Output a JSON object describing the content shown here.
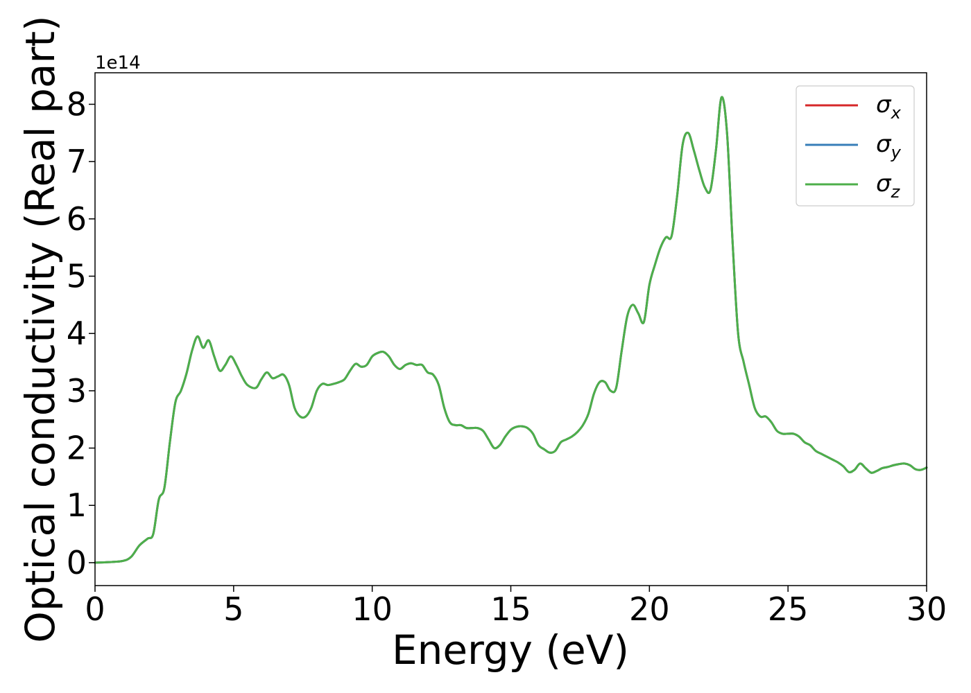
{
  "chart_data": {
    "type": "line",
    "title": "",
    "xlabel": "Energy (eV)",
    "ylabel": "Optical conductivity (Real part)",
    "y_offset_label": "1e14",
    "y_scale": 100000000000000.0,
    "xlim": [
      0,
      30
    ],
    "ylim": [
      -0.4,
      8.55
    ],
    "x_ticks": [
      0,
      5,
      10,
      15,
      20,
      25,
      30
    ],
    "y_ticks": [
      0,
      1,
      2,
      3,
      4,
      5,
      6,
      7,
      8
    ],
    "grid": false,
    "legend": {
      "placement": "top-right",
      "entries": [
        {
          "symbol": "σ",
          "sub": "x",
          "color": "#d62728"
        },
        {
          "symbol": "σ",
          "sub": "y",
          "color": "#377eb8"
        },
        {
          "symbol": "σ",
          "sub": "z",
          "color": "#4daf4a"
        }
      ]
    },
    "series": [
      {
        "id": "sigma_x",
        "color": "#d62728",
        "x": [
          0,
          0.5,
          1.0,
          1.3,
          1.6,
          1.9,
          2.1,
          2.3,
          2.5,
          2.7,
          2.9,
          3.1,
          3.3,
          3.5,
          3.7,
          3.9,
          4.1,
          4.3,
          4.5,
          4.7,
          4.9,
          5.1,
          5.3,
          5.5,
          5.8,
          6.0,
          6.2,
          6.4,
          6.6,
          6.8,
          7.0,
          7.2,
          7.4,
          7.6,
          7.8,
          8.0,
          8.2,
          8.4,
          8.6,
          8.8,
          9.0,
          9.2,
          9.4,
          9.6,
          9.8,
          10.0,
          10.2,
          10.4,
          10.6,
          10.8,
          11.0,
          11.2,
          11.4,
          11.6,
          11.8,
          12.0,
          12.2,
          12.4,
          12.6,
          12.8,
          13.0,
          13.2,
          13.4,
          13.6,
          13.8,
          14.0,
          14.2,
          14.4,
          14.6,
          14.8,
          15.0,
          15.2,
          15.4,
          15.6,
          15.8,
          16.0,
          16.2,
          16.4,
          16.6,
          16.8,
          17.0,
          17.2,
          17.4,
          17.6,
          17.8,
          18.0,
          18.2,
          18.4,
          18.6,
          18.8,
          19.0,
          19.2,
          19.4,
          19.6,
          19.8,
          20.0,
          20.2,
          20.4,
          20.6,
          20.8,
          21.0,
          21.2,
          21.4,
          21.6,
          21.8,
          22.0,
          22.2,
          22.4,
          22.6,
          22.8,
          23.0,
          23.2,
          23.4,
          23.6,
          23.8,
          24.0,
          24.2,
          24.4,
          24.6,
          24.8,
          25.0,
          25.2,
          25.4,
          25.6,
          25.8,
          26.0,
          26.2,
          26.4,
          26.6,
          26.8,
          27.0,
          27.2,
          27.4,
          27.6,
          27.8,
          28.0,
          28.2,
          28.4,
          28.6,
          28.8,
          29.0,
          29.2,
          29.4,
          29.6,
          29.8,
          30.0
        ],
        "y": [
          0.0,
          0.01,
          0.03,
          0.1,
          0.3,
          0.42,
          0.5,
          1.1,
          1.3,
          2.1,
          2.8,
          3.0,
          3.3,
          3.7,
          3.95,
          3.75,
          3.88,
          3.6,
          3.35,
          3.45,
          3.6,
          3.45,
          3.25,
          3.1,
          3.05,
          3.2,
          3.32,
          3.22,
          3.25,
          3.28,
          3.1,
          2.7,
          2.55,
          2.55,
          2.7,
          3.0,
          3.12,
          3.1,
          3.12,
          3.15,
          3.2,
          3.35,
          3.47,
          3.42,
          3.45,
          3.6,
          3.66,
          3.68,
          3.6,
          3.45,
          3.38,
          3.45,
          3.48,
          3.45,
          3.45,
          3.32,
          3.28,
          3.1,
          2.7,
          2.45,
          2.4,
          2.4,
          2.35,
          2.35,
          2.35,
          2.3,
          2.15,
          2.0,
          2.05,
          2.2,
          2.32,
          2.37,
          2.38,
          2.35,
          2.25,
          2.05,
          1.98,
          1.92,
          1.95,
          2.1,
          2.15,
          2.2,
          2.28,
          2.4,
          2.6,
          2.95,
          3.15,
          3.15,
          3.0,
          3.05,
          3.7,
          4.3,
          4.5,
          4.35,
          4.2,
          4.85,
          5.2,
          5.5,
          5.68,
          5.7,
          6.4,
          7.3,
          7.5,
          7.2,
          6.85,
          6.55,
          6.5,
          7.2,
          8.12,
          7.5,
          5.6,
          4.0,
          3.5,
          3.1,
          2.7,
          2.55,
          2.55,
          2.45,
          2.3,
          2.25,
          2.25,
          2.25,
          2.2,
          2.1,
          2.05,
          1.95,
          1.9,
          1.85,
          1.8,
          1.75,
          1.68,
          1.58,
          1.62,
          1.73,
          1.65,
          1.57,
          1.6,
          1.65,
          1.67,
          1.7,
          1.72,
          1.73,
          1.7,
          1.63,
          1.62,
          1.66
        ]
      },
      {
        "id": "sigma_y",
        "color": "#377eb8",
        "x": [
          0,
          0.5,
          1.0,
          1.3,
          1.6,
          1.9,
          2.1,
          2.3,
          2.5,
          2.7,
          2.9,
          3.1,
          3.3,
          3.5,
          3.7,
          3.9,
          4.1,
          4.3,
          4.5,
          4.7,
          4.9,
          5.1,
          5.3,
          5.5,
          5.8,
          6.0,
          6.2,
          6.4,
          6.6,
          6.8,
          7.0,
          7.2,
          7.4,
          7.6,
          7.8,
          8.0,
          8.2,
          8.4,
          8.6,
          8.8,
          9.0,
          9.2,
          9.4,
          9.6,
          9.8,
          10.0,
          10.2,
          10.4,
          10.6,
          10.8,
          11.0,
          11.2,
          11.4,
          11.6,
          11.8,
          12.0,
          12.2,
          12.4,
          12.6,
          12.8,
          13.0,
          13.2,
          13.4,
          13.6,
          13.8,
          14.0,
          14.2,
          14.4,
          14.6,
          14.8,
          15.0,
          15.2,
          15.4,
          15.6,
          15.8,
          16.0,
          16.2,
          16.4,
          16.6,
          16.8,
          17.0,
          17.2,
          17.4,
          17.6,
          17.8,
          18.0,
          18.2,
          18.4,
          18.6,
          18.8,
          19.0,
          19.2,
          19.4,
          19.6,
          19.8,
          20.0,
          20.2,
          20.4,
          20.6,
          20.8,
          21.0,
          21.2,
          21.4,
          21.6,
          21.8,
          22.0,
          22.2,
          22.4,
          22.6,
          22.8,
          23.0,
          23.2,
          23.4,
          23.6,
          23.8,
          24.0,
          24.2,
          24.4,
          24.6,
          24.8,
          25.0,
          25.2,
          25.4,
          25.6,
          25.8,
          26.0,
          26.2,
          26.4,
          26.6,
          26.8,
          27.0,
          27.2,
          27.4,
          27.6,
          27.8,
          28.0,
          28.2,
          28.4,
          28.6,
          28.8,
          29.0,
          29.2,
          29.4,
          29.6,
          29.8,
          30.0
        ],
        "y": [
          0.0,
          0.01,
          0.03,
          0.1,
          0.3,
          0.42,
          0.5,
          1.1,
          1.3,
          2.1,
          2.8,
          3.0,
          3.3,
          3.7,
          3.95,
          3.75,
          3.88,
          3.6,
          3.35,
          3.45,
          3.6,
          3.45,
          3.25,
          3.1,
          3.05,
          3.2,
          3.32,
          3.22,
          3.25,
          3.28,
          3.1,
          2.7,
          2.55,
          2.55,
          2.7,
          3.0,
          3.12,
          3.1,
          3.12,
          3.15,
          3.2,
          3.35,
          3.47,
          3.42,
          3.45,
          3.6,
          3.66,
          3.68,
          3.6,
          3.45,
          3.38,
          3.45,
          3.48,
          3.45,
          3.45,
          3.32,
          3.28,
          3.1,
          2.7,
          2.45,
          2.4,
          2.4,
          2.35,
          2.35,
          2.35,
          2.3,
          2.15,
          2.0,
          2.05,
          2.2,
          2.32,
          2.37,
          2.38,
          2.35,
          2.25,
          2.05,
          1.98,
          1.92,
          1.95,
          2.1,
          2.15,
          2.2,
          2.28,
          2.4,
          2.6,
          2.95,
          3.15,
          3.15,
          3.0,
          3.05,
          3.7,
          4.3,
          4.5,
          4.35,
          4.2,
          4.85,
          5.2,
          5.5,
          5.68,
          5.7,
          6.4,
          7.3,
          7.5,
          7.2,
          6.85,
          6.55,
          6.5,
          7.2,
          8.12,
          7.5,
          5.6,
          4.0,
          3.5,
          3.1,
          2.7,
          2.55,
          2.55,
          2.45,
          2.3,
          2.25,
          2.25,
          2.25,
          2.2,
          2.1,
          2.05,
          1.95,
          1.9,
          1.85,
          1.8,
          1.75,
          1.68,
          1.58,
          1.62,
          1.73,
          1.65,
          1.57,
          1.6,
          1.65,
          1.67,
          1.7,
          1.72,
          1.73,
          1.7,
          1.63,
          1.62,
          1.66
        ]
      },
      {
        "id": "sigma_z",
        "color": "#4daf4a",
        "x": [
          0,
          0.5,
          1.0,
          1.3,
          1.6,
          1.9,
          2.1,
          2.3,
          2.5,
          2.7,
          2.9,
          3.1,
          3.3,
          3.5,
          3.7,
          3.9,
          4.1,
          4.3,
          4.5,
          4.7,
          4.9,
          5.1,
          5.3,
          5.5,
          5.8,
          6.0,
          6.2,
          6.4,
          6.6,
          6.8,
          7.0,
          7.2,
          7.4,
          7.6,
          7.8,
          8.0,
          8.2,
          8.4,
          8.6,
          8.8,
          9.0,
          9.2,
          9.4,
          9.6,
          9.8,
          10.0,
          10.2,
          10.4,
          10.6,
          10.8,
          11.0,
          11.2,
          11.4,
          11.6,
          11.8,
          12.0,
          12.2,
          12.4,
          12.6,
          12.8,
          13.0,
          13.2,
          13.4,
          13.6,
          13.8,
          14.0,
          14.2,
          14.4,
          14.6,
          14.8,
          15.0,
          15.2,
          15.4,
          15.6,
          15.8,
          16.0,
          16.2,
          16.4,
          16.6,
          16.8,
          17.0,
          17.2,
          17.4,
          17.6,
          17.8,
          18.0,
          18.2,
          18.4,
          18.6,
          18.8,
          19.0,
          19.2,
          19.4,
          19.6,
          19.8,
          20.0,
          20.2,
          20.4,
          20.6,
          20.8,
          21.0,
          21.2,
          21.4,
          21.6,
          21.8,
          22.0,
          22.2,
          22.4,
          22.6,
          22.8,
          23.0,
          23.2,
          23.4,
          23.6,
          23.8,
          24.0,
          24.2,
          24.4,
          24.6,
          24.8,
          25.0,
          25.2,
          25.4,
          25.6,
          25.8,
          26.0,
          26.2,
          26.4,
          26.6,
          26.8,
          27.0,
          27.2,
          27.4,
          27.6,
          27.8,
          28.0,
          28.2,
          28.4,
          28.6,
          28.8,
          29.0,
          29.2,
          29.4,
          29.6,
          29.8,
          30.0
        ],
        "y": [
          0.0,
          0.01,
          0.03,
          0.1,
          0.3,
          0.42,
          0.5,
          1.1,
          1.3,
          2.1,
          2.8,
          3.0,
          3.3,
          3.7,
          3.95,
          3.75,
          3.88,
          3.6,
          3.35,
          3.45,
          3.6,
          3.45,
          3.25,
          3.1,
          3.05,
          3.2,
          3.32,
          3.22,
          3.25,
          3.28,
          3.1,
          2.7,
          2.55,
          2.55,
          2.7,
          3.0,
          3.12,
          3.1,
          3.12,
          3.15,
          3.2,
          3.35,
          3.47,
          3.42,
          3.45,
          3.6,
          3.66,
          3.68,
          3.6,
          3.45,
          3.38,
          3.45,
          3.48,
          3.45,
          3.45,
          3.32,
          3.28,
          3.1,
          2.7,
          2.45,
          2.4,
          2.4,
          2.35,
          2.35,
          2.35,
          2.3,
          2.15,
          2.0,
          2.05,
          2.2,
          2.32,
          2.37,
          2.38,
          2.35,
          2.25,
          2.05,
          1.98,
          1.92,
          1.95,
          2.1,
          2.15,
          2.2,
          2.28,
          2.4,
          2.6,
          2.95,
          3.15,
          3.15,
          3.0,
          3.05,
          3.7,
          4.3,
          4.5,
          4.35,
          4.2,
          4.85,
          5.2,
          5.5,
          5.68,
          5.7,
          6.4,
          7.3,
          7.5,
          7.2,
          6.85,
          6.55,
          6.5,
          7.2,
          8.12,
          7.5,
          5.6,
          4.0,
          3.5,
          3.1,
          2.7,
          2.55,
          2.55,
          2.45,
          2.3,
          2.25,
          2.25,
          2.25,
          2.2,
          2.1,
          2.05,
          1.95,
          1.9,
          1.85,
          1.8,
          1.75,
          1.68,
          1.58,
          1.62,
          1.73,
          1.65,
          1.57,
          1.6,
          1.65,
          1.67,
          1.7,
          1.72,
          1.73,
          1.7,
          1.63,
          1.62,
          1.66
        ]
      }
    ]
  }
}
